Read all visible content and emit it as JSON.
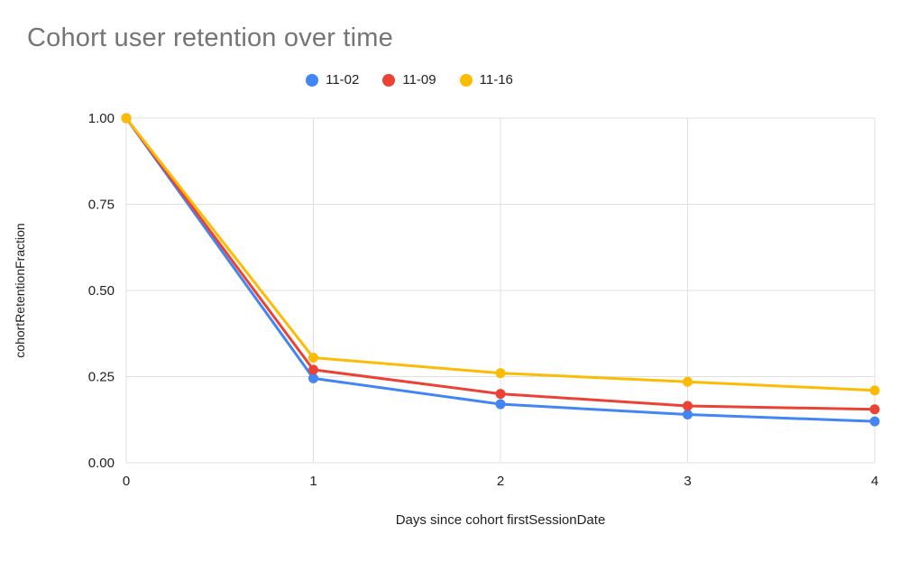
{
  "chart_data": {
    "type": "line",
    "title": "Cohort user retention over time",
    "xlabel": "Days since cohort firstSessionDate",
    "ylabel": "cohortRetentionFraction",
    "x": [
      0,
      1,
      2,
      3,
      4
    ],
    "x_ticks": [
      "0",
      "1",
      "2",
      "3",
      "4"
    ],
    "y_ticks": [
      "0.00",
      "0.25",
      "0.50",
      "0.75",
      "1.00"
    ],
    "xlim": [
      0,
      4
    ],
    "ylim": [
      0,
      1
    ],
    "grid": true,
    "legend_position": "top",
    "series": [
      {
        "name": "11-02",
        "color": "#4285F4",
        "values": [
          1.0,
          0.245,
          0.17,
          0.14,
          0.12
        ]
      },
      {
        "name": "11-09",
        "color": "#EA4335",
        "values": [
          1.0,
          0.27,
          0.2,
          0.165,
          0.155
        ]
      },
      {
        "name": "11-16",
        "color": "#FBBC04",
        "values": [
          1.0,
          0.305,
          0.26,
          0.235,
          0.21
        ]
      }
    ]
  },
  "styles": {
    "title_color": "#757575",
    "axis_text_color": "#202124",
    "legend_text_color": "#202124",
    "grid_color": "#e0e0e0",
    "background_color": "#ffffff"
  }
}
